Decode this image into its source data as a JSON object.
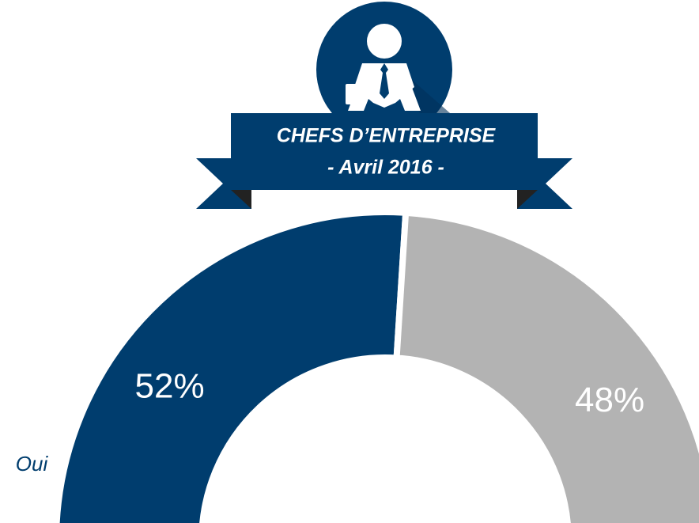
{
  "chart_data": {
    "type": "pie",
    "title": "CHEFS D’ENTREPRISE",
    "subtitle": "- Avril 2016 -",
    "categories": [
      "Oui",
      null
    ],
    "values": [
      52,
      48
    ],
    "value_labels": [
      "52%",
      "48%"
    ],
    "colors": [
      "#003d6e",
      "#b3b3b3"
    ]
  }
}
